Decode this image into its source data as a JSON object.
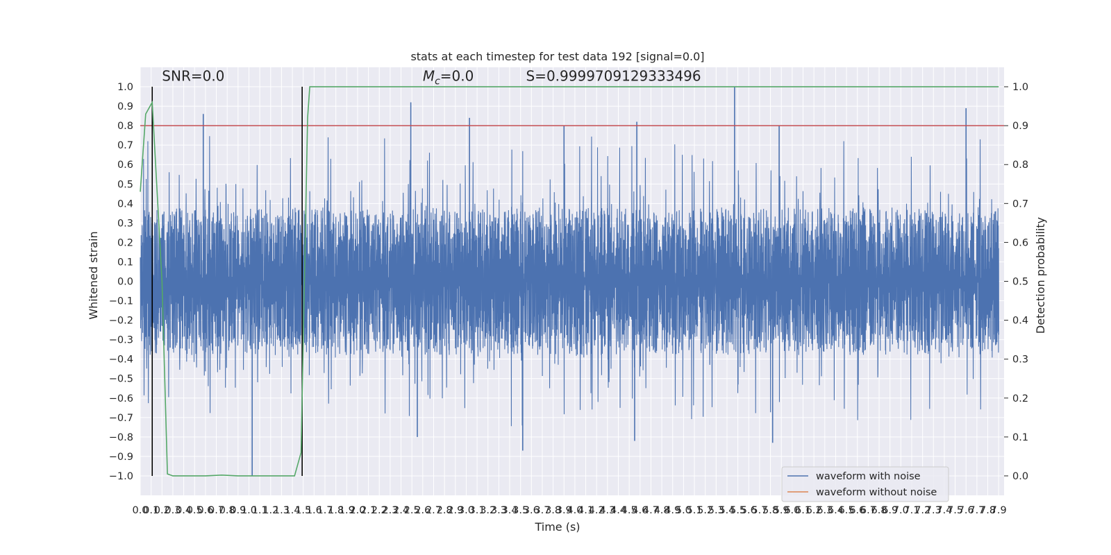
{
  "chart_data": {
    "type": "line",
    "title": "stats at each timestep for test data 192 [signal=0.0]",
    "xlabel": "Time (s)",
    "ylabel": "Whitened strain",
    "ylabel_right": "Detection probability",
    "xlim": [
      0.0,
      7.95
    ],
    "ylim": [
      -1.1,
      1.1
    ],
    "ylim_right": [
      -0.05,
      1.05
    ],
    "xticks": [
      "0.0",
      "0.1",
      "0.2",
      "0.3",
      "0.4",
      "0.5",
      "0.6",
      "0.7",
      "0.8",
      "0.9",
      "1.0",
      "1.1",
      "1.2",
      "1.3",
      "1.4",
      "1.5",
      "1.6",
      "1.7",
      "1.8",
      "1.9",
      "2.0",
      "2.1",
      "2.2",
      "2.3",
      "2.4",
      "2.5",
      "2.6",
      "2.7",
      "2.8",
      "2.9",
      "3.0",
      "3.1",
      "3.2",
      "3.3",
      "3.4",
      "3.5",
      "3.6",
      "3.7",
      "3.8",
      "3.9",
      "4.0",
      "4.1",
      "4.2",
      "4.3",
      "4.4",
      "4.5",
      "4.6",
      "4.7",
      "4.8",
      "4.9",
      "5.0",
      "5.1",
      "5.2",
      "5.3",
      "5.4",
      "5.5",
      "5.6",
      "5.7",
      "5.8",
      "5.9",
      "6.0",
      "6.1",
      "6.2",
      "6.3",
      "6.4",
      "6.5",
      "6.6",
      "6.7",
      "6.8",
      "6.9",
      "7.0",
      "7.1",
      "7.2",
      "7.3",
      "7.4",
      "7.5",
      "7.6",
      "7.7",
      "7.8",
      "7.9"
    ],
    "yticks_left": [
      "1.0",
      "0.9",
      "0.8",
      "0.7",
      "0.6",
      "0.5",
      "0.4",
      "0.3",
      "0.2",
      "0.1",
      "0.0",
      "−0.1",
      "−0.2",
      "−0.3",
      "−0.4",
      "−0.5",
      "−0.6",
      "−0.7",
      "−0.8",
      "−0.9",
      "−1.0"
    ],
    "yticks_left_values": [
      1.0,
      0.9,
      0.8,
      0.7,
      0.6,
      0.5,
      0.4,
      0.3,
      0.2,
      0.1,
      0.0,
      -0.1,
      -0.2,
      -0.3,
      -0.4,
      -0.5,
      -0.6,
      -0.7,
      -0.8,
      -0.9,
      -1.0
    ],
    "yticks_right": [
      "1.0",
      "0.9",
      "0.8",
      "0.7",
      "0.6",
      "0.5",
      "0.4",
      "0.3",
      "0.2",
      "0.1",
      "0.0"
    ],
    "yticks_right_values": [
      1.0,
      0.9,
      0.8,
      0.7,
      0.6,
      0.5,
      0.4,
      0.3,
      0.2,
      0.1,
      0.0
    ],
    "series": [
      {
        "name": "waveform with noise",
        "color": "#4c72b0",
        "axis": "left",
        "noise_envelope": {
          "typical_abs": 0.33,
          "max_spike": 1.0,
          "min_spike": -1.0
        },
        "spikes": [
          {
            "x": 0.58,
            "y": 0.86
          },
          {
            "x": 2.49,
            "y": 0.92
          },
          {
            "x": 3.03,
            "y": 0.84
          },
          {
            "x": 3.9,
            "y": 0.8
          },
          {
            "x": 4.57,
            "y": 0.82
          },
          {
            "x": 5.47,
            "y": 1.0
          },
          {
            "x": 5.88,
            "y": 0.8
          },
          {
            "x": 7.6,
            "y": 0.89
          },
          {
            "x": 1.03,
            "y": -1.0
          },
          {
            "x": 2.55,
            "y": -0.8
          },
          {
            "x": 3.52,
            "y": -0.87
          },
          {
            "x": 4.55,
            "y": -0.82
          },
          {
            "x": 5.82,
            "y": -0.83
          }
        ]
      },
      {
        "name": "waveform without noise",
        "color": "#dd8452",
        "axis": "left",
        "values": []
      },
      {
        "name": "",
        "color": "#55a868",
        "axis": "right",
        "x": [
          0.0,
          0.05,
          0.11,
          0.2,
          0.25,
          0.3,
          0.4,
          0.6,
          0.75,
          0.9,
          1.2,
          1.42,
          1.48,
          1.54,
          1.56,
          7.9
        ],
        "y": [
          0.73,
          0.93,
          0.96,
          0.5,
          0.005,
          0.0,
          0.0,
          0.0,
          0.002,
          0.0,
          0.0,
          0.0,
          0.06,
          0.92,
          1.0,
          1.0
        ]
      }
    ],
    "hlines": [
      {
        "axis": "left",
        "y": 0.8,
        "color": "#c44e52"
      }
    ],
    "vlines": [
      {
        "x": 0.11,
        "color": "#000000"
      },
      {
        "x": 1.49,
        "color": "#000000"
      }
    ],
    "annotations": [
      {
        "text": "SNR=0.0",
        "x": 0.2,
        "y": 1.03
      },
      {
        "text_main": "M",
        "text_sub": "c",
        "text_rest": "=0.0",
        "x": 2.6,
        "y": 1.03
      },
      {
        "text": "S=0.9999709129333496",
        "x": 3.55,
        "y": 1.03
      }
    ],
    "legend_position": "lower right",
    "grid": true,
    "background": "#eaeaf2",
    "grid_color": "#ffffff"
  }
}
